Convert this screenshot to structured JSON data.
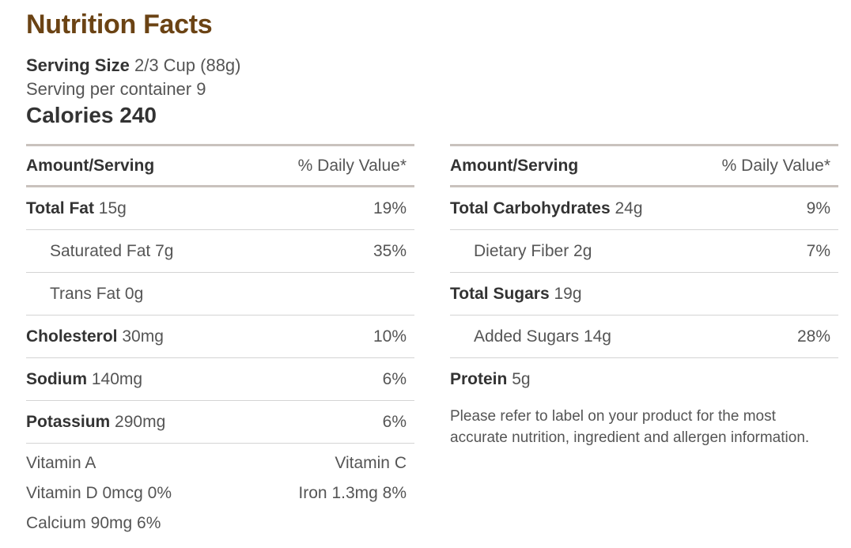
{
  "title": "Nutrition Facts",
  "serving": {
    "size_label": "Serving Size",
    "size_value": "2/3 Cup (88g)",
    "per_container": "Serving per container 9",
    "calories": "Calories 240"
  },
  "header": {
    "amount": "Amount/Serving",
    "daily_value": "% Daily Value*"
  },
  "left_rows": [
    {
      "name": "Total Fat",
      "amount": "15g",
      "pct": "19%"
    },
    {
      "name": "Saturated Fat",
      "amount": "7g",
      "pct": "35%"
    },
    {
      "name": "Trans Fat",
      "amount": "0g",
      "pct": ""
    },
    {
      "name": "Cholesterol",
      "amount": "30mg",
      "pct": "10%"
    },
    {
      "name": "Sodium",
      "amount": "140mg",
      "pct": "6%"
    },
    {
      "name": "Potassium",
      "amount": "290mg",
      "pct": "6%"
    }
  ],
  "vitamins": [
    {
      "left": "Vitamin A",
      "right": "Vitamin C"
    },
    {
      "left": "Vitamin D 0mcg 0%",
      "right": "Iron 1.3mg 8%"
    },
    {
      "left": "Calcium 90mg 6%",
      "right": ""
    }
  ],
  "right_rows": [
    {
      "name": "Total Carbohydrates",
      "amount": "24g",
      "pct": "9%"
    },
    {
      "name": "Dietary Fiber",
      "amount": "2g",
      "pct": "7%"
    },
    {
      "name": "Total Sugars",
      "amount": "19g",
      "pct": ""
    },
    {
      "name": "Added Sugars",
      "amount": "14g",
      "pct": "28%"
    },
    {
      "name": "Protein",
      "amount": "5g",
      "pct": ""
    }
  ],
  "note": "Please refer to label on your product for the most accurate nutrition, ingredient and allergen information."
}
